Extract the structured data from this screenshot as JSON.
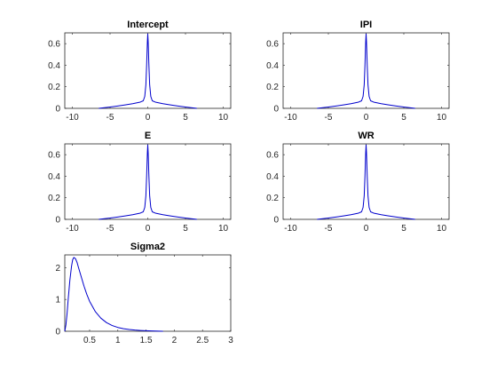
{
  "chart_data": [
    {
      "type": "line",
      "title": "Intercept",
      "xlim": [
        -11,
        11
      ],
      "ylim": [
        0,
        0.7
      ],
      "xticks": [
        -10,
        -5,
        0,
        5,
        10
      ],
      "yticks": [
        0,
        0.2,
        0.4,
        0.6
      ],
      "xticklabels": [
        "-10",
        "-5",
        "0",
        "5",
        "10"
      ],
      "yticklabels": [
        "0",
        "0.2",
        "0.4",
        "0.6"
      ],
      "color": "#0000cc",
      "series": [
        {
          "x": [
            -6.5,
            -5,
            -4,
            -3,
            -2,
            -1,
            -0.6,
            -0.4,
            -0.25,
            -0.15,
            -0.05,
            0,
            0.05,
            0.15,
            0.25,
            0.4,
            0.6,
            1,
            2,
            3,
            4,
            5,
            6.5
          ],
          "y": [
            0,
            0.012,
            0.022,
            0.032,
            0.043,
            0.058,
            0.07,
            0.11,
            0.22,
            0.4,
            0.62,
            0.69,
            0.62,
            0.4,
            0.22,
            0.11,
            0.07,
            0.058,
            0.043,
            0.032,
            0.022,
            0.012,
            0
          ]
        }
      ]
    },
    {
      "type": "line",
      "title": "IPI",
      "xlim": [
        -11,
        11
      ],
      "ylim": [
        0,
        0.7
      ],
      "xticks": [
        -10,
        -5,
        0,
        5,
        10
      ],
      "yticks": [
        0,
        0.2,
        0.4,
        0.6
      ],
      "xticklabels": [
        "-10",
        "-5",
        "0",
        "5",
        "10"
      ],
      "yticklabels": [
        "0",
        "0.2",
        "0.4",
        "0.6"
      ],
      "color": "#0000cc",
      "series": [
        {
          "x": [
            -6.5,
            -5,
            -4,
            -3,
            -2,
            -1,
            -0.6,
            -0.4,
            -0.25,
            -0.15,
            -0.05,
            0,
            0.05,
            0.15,
            0.25,
            0.4,
            0.6,
            1,
            2,
            3,
            4,
            5,
            6.5
          ],
          "y": [
            0,
            0.012,
            0.022,
            0.032,
            0.043,
            0.058,
            0.07,
            0.11,
            0.22,
            0.4,
            0.62,
            0.69,
            0.62,
            0.4,
            0.22,
            0.11,
            0.07,
            0.058,
            0.043,
            0.032,
            0.022,
            0.012,
            0
          ]
        }
      ]
    },
    {
      "type": "line",
      "title": "E",
      "xlim": [
        -11,
        11
      ],
      "ylim": [
        0,
        0.7
      ],
      "xticks": [
        -10,
        -5,
        0,
        5,
        10
      ],
      "yticks": [
        0,
        0.2,
        0.4,
        0.6
      ],
      "xticklabels": [
        "-10",
        "-5",
        "0",
        "5",
        "10"
      ],
      "yticklabels": [
        "0",
        "0.2",
        "0.4",
        "0.6"
      ],
      "color": "#0000cc",
      "series": [
        {
          "x": [
            -6.5,
            -5,
            -4,
            -3,
            -2,
            -1,
            -0.6,
            -0.4,
            -0.25,
            -0.15,
            -0.05,
            0,
            0.05,
            0.15,
            0.25,
            0.4,
            0.6,
            1,
            2,
            3,
            4,
            5,
            6.5
          ],
          "y": [
            0,
            0.012,
            0.022,
            0.032,
            0.043,
            0.058,
            0.07,
            0.11,
            0.22,
            0.4,
            0.62,
            0.69,
            0.62,
            0.4,
            0.22,
            0.11,
            0.07,
            0.058,
            0.043,
            0.032,
            0.022,
            0.012,
            0
          ]
        }
      ]
    },
    {
      "type": "line",
      "title": "WR",
      "xlim": [
        -11,
        11
      ],
      "ylim": [
        0,
        0.7
      ],
      "xticks": [
        -10,
        -5,
        0,
        5,
        10
      ],
      "yticks": [
        0,
        0.2,
        0.4,
        0.6
      ],
      "xticklabels": [
        "-10",
        "-5",
        "0",
        "5",
        "10"
      ],
      "yticklabels": [
        "0",
        "0.2",
        "0.4",
        "0.6"
      ],
      "color": "#0000cc",
      "series": [
        {
          "x": [
            -6.5,
            -5,
            -4,
            -3,
            -2,
            -1,
            -0.6,
            -0.4,
            -0.25,
            -0.15,
            -0.05,
            0,
            0.05,
            0.15,
            0.25,
            0.4,
            0.6,
            1,
            2,
            3,
            4,
            5,
            6.5
          ],
          "y": [
            0,
            0.012,
            0.022,
            0.032,
            0.043,
            0.058,
            0.07,
            0.11,
            0.22,
            0.4,
            0.62,
            0.69,
            0.62,
            0.4,
            0.22,
            0.11,
            0.07,
            0.058,
            0.043,
            0.032,
            0.022,
            0.012,
            0
          ]
        }
      ]
    },
    {
      "type": "line",
      "title": "Sigma2",
      "xlim": [
        0.06,
        3
      ],
      "ylim": [
        0,
        2.4
      ],
      "xticks": [
        0.5,
        1,
        1.5,
        2,
        2.5,
        3
      ],
      "yticks": [
        0,
        1,
        2
      ],
      "xticklabels": [
        "0.5",
        "1",
        "1.5",
        "2",
        "2.5",
        "3"
      ],
      "yticklabels": [
        "0",
        "1",
        "2"
      ],
      "color": "#0000cc",
      "series": [
        {
          "x": [
            0.06,
            0.08,
            0.1,
            0.12,
            0.15,
            0.18,
            0.2,
            0.22,
            0.25,
            0.28,
            0.3,
            0.35,
            0.4,
            0.45,
            0.5,
            0.6,
            0.7,
            0.8,
            0.9,
            1.0,
            1.1,
            1.2,
            1.3,
            1.4,
            1.5,
            1.6,
            1.8
          ],
          "y": [
            0,
            0.2,
            0.55,
            1.0,
            1.6,
            2.05,
            2.25,
            2.32,
            2.28,
            2.15,
            2.02,
            1.72,
            1.42,
            1.16,
            0.94,
            0.62,
            0.41,
            0.27,
            0.18,
            0.12,
            0.08,
            0.055,
            0.037,
            0.025,
            0.016,
            0.01,
            0
          ]
        }
      ]
    }
  ]
}
